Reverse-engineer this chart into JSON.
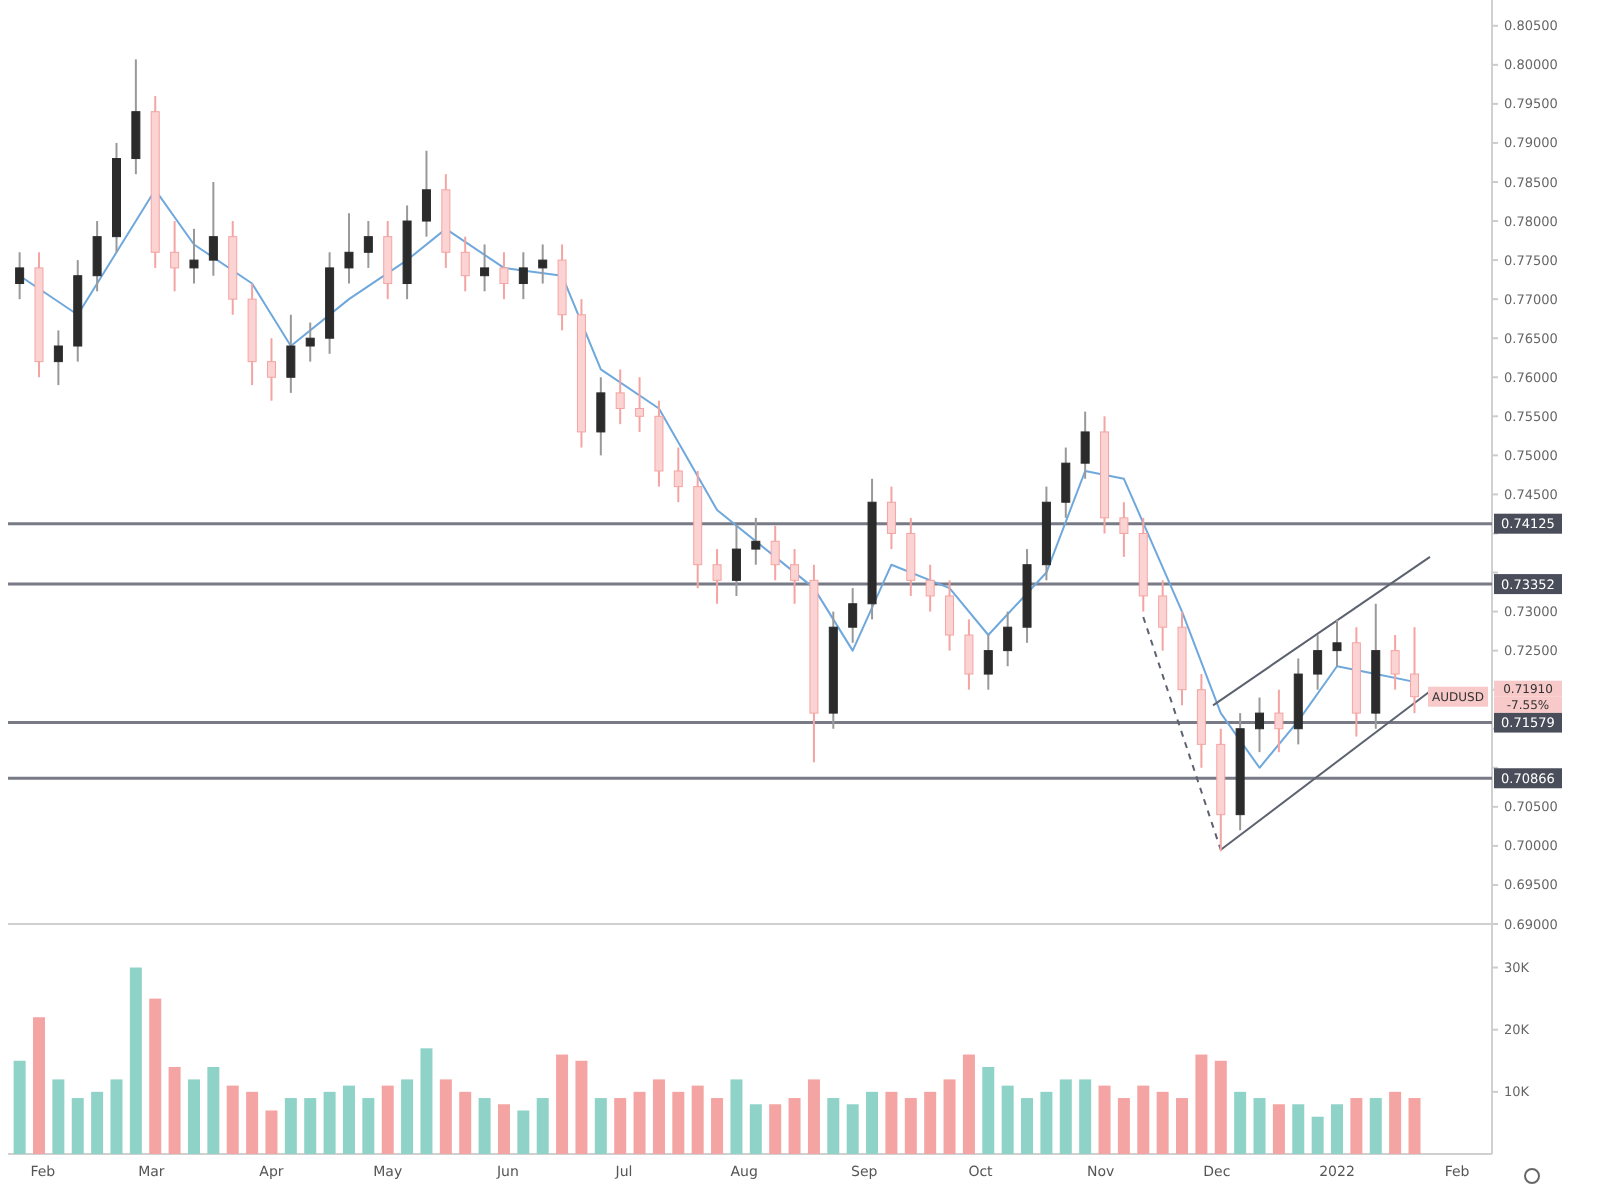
{
  "chart_data": [
    {
      "type": "candlestick",
      "tick_labels": "y",
      "xlim": [
        "2021-01-23",
        "2022-02-10"
      ],
      "ylim": [
        0.69,
        0.8083
      ],
      "yticks": [
        {
          "value": 0.69,
          "label": "0.69000"
        },
        {
          "value": 0.695,
          "label": "0.69500"
        },
        {
          "value": 0.7,
          "label": "0.70000"
        },
        {
          "value": 0.705,
          "label": "0.70500"
        },
        {
          "value": 0.71,
          "label": null
        },
        {
          "value": 0.715,
          "label": null
        },
        {
          "value": 0.72,
          "label": null
        },
        {
          "value": 0.725,
          "label": "0.72500"
        },
        {
          "value": 0.73,
          "label": "0.73000"
        },
        {
          "value": 0.735,
          "label": null
        },
        {
          "value": 0.74,
          "label": null
        },
        {
          "value": 0.745,
          "label": "0.74500"
        },
        {
          "value": 0.75,
          "label": "0.75000"
        },
        {
          "value": 0.755,
          "label": "0.75500"
        },
        {
          "value": 0.76,
          "label": "0.76000"
        },
        {
          "value": 0.765,
          "label": "0.76500"
        },
        {
          "value": 0.77,
          "label": "0.77000"
        },
        {
          "value": 0.775,
          "label": "0.77500"
        },
        {
          "value": 0.78,
          "label": "0.78000"
        },
        {
          "value": 0.785,
          "label": "0.78500"
        },
        {
          "value": 0.79,
          "label": "0.79000"
        },
        {
          "value": 0.795,
          "label": "0.79500"
        },
        {
          "value": 0.8,
          "label": "0.80000"
        },
        {
          "value": 0.805,
          "label": "0.80500"
        }
      ],
      "x": [
        "2021-01-26",
        "2021-01-31",
        "2021-02-05",
        "2021-02-10",
        "2021-02-15",
        "2021-02-20",
        "2021-02-25",
        "2021-03-02",
        "2021-03-07",
        "2021-03-12",
        "2021-03-17",
        "2021-03-22",
        "2021-03-27",
        "2021-04-01",
        "2021-04-06",
        "2021-04-11",
        "2021-04-16",
        "2021-04-21",
        "2021-04-26",
        "2021-05-01",
        "2021-05-06",
        "2021-05-11",
        "2021-05-16",
        "2021-05-21",
        "2021-05-26",
        "2021-05-31",
        "2021-06-05",
        "2021-06-10",
        "2021-06-15",
        "2021-06-20",
        "2021-06-25",
        "2021-06-30",
        "2021-07-05",
        "2021-07-10",
        "2021-07-15",
        "2021-07-20",
        "2021-07-25",
        "2021-07-30",
        "2021-08-04",
        "2021-08-09",
        "2021-08-14",
        "2021-08-19",
        "2021-08-24",
        "2021-08-29",
        "2021-09-03",
        "2021-09-08",
        "2021-09-13",
        "2021-09-18",
        "2021-09-23",
        "2021-09-28",
        "2021-10-03",
        "2021-10-08",
        "2021-10-13",
        "2021-10-18",
        "2021-10-23",
        "2021-10-28",
        "2021-11-02",
        "2021-11-07",
        "2021-11-12",
        "2021-11-17",
        "2021-11-22",
        "2021-11-27",
        "2021-12-02",
        "2021-12-07",
        "2021-12-12",
        "2021-12-17",
        "2021-12-22",
        "2021-12-27",
        "2022-01-01",
        "2022-01-06",
        "2022-01-11",
        "2022-01-16",
        "2022-01-21"
      ],
      "ohlc": [
        [
          0.772,
          0.776,
          0.77,
          0.774
        ],
        [
          0.774,
          0.776,
          0.76,
          0.762
        ],
        [
          0.762,
          0.766,
          0.759,
          0.764
        ],
        [
          0.764,
          0.775,
          0.762,
          0.773
        ],
        [
          0.773,
          0.78,
          0.771,
          0.778
        ],
        [
          0.778,
          0.79,
          0.776,
          0.788
        ],
        [
          0.788,
          0.8007,
          0.786,
          0.794
        ],
        [
          0.794,
          0.796,
          0.774,
          0.776
        ],
        [
          0.776,
          0.78,
          0.771,
          0.774
        ],
        [
          0.774,
          0.779,
          0.772,
          0.775
        ],
        [
          0.775,
          0.785,
          0.773,
          0.778
        ],
        [
          0.778,
          0.78,
          0.768,
          0.77
        ],
        [
          0.77,
          0.772,
          0.759,
          0.762
        ],
        [
          0.762,
          0.765,
          0.757,
          0.76
        ],
        [
          0.76,
          0.768,
          0.758,
          0.764
        ],
        [
          0.764,
          0.767,
          0.762,
          0.765
        ],
        [
          0.765,
          0.776,
          0.763,
          0.774
        ],
        [
          0.774,
          0.781,
          0.772,
          0.776
        ],
        [
          0.776,
          0.78,
          0.774,
          0.778
        ],
        [
          0.778,
          0.78,
          0.77,
          0.772
        ],
        [
          0.772,
          0.782,
          0.77,
          0.78
        ],
        [
          0.78,
          0.789,
          0.778,
          0.784
        ],
        [
          0.784,
          0.786,
          0.774,
          0.776
        ],
        [
          0.776,
          0.778,
          0.771,
          0.773
        ],
        [
          0.773,
          0.777,
          0.771,
          0.774
        ],
        [
          0.774,
          0.776,
          0.77,
          0.772
        ],
        [
          0.772,
          0.776,
          0.77,
          0.774
        ],
        [
          0.774,
          0.777,
          0.772,
          0.775
        ],
        [
          0.775,
          0.777,
          0.766,
          0.768
        ],
        [
          0.768,
          0.77,
          0.751,
          0.753
        ],
        [
          0.753,
          0.76,
          0.75,
          0.758
        ],
        [
          0.758,
          0.761,
          0.754,
          0.756
        ],
        [
          0.756,
          0.76,
          0.753,
          0.755
        ],
        [
          0.755,
          0.757,
          0.746,
          0.748
        ],
        [
          0.748,
          0.751,
          0.744,
          0.746
        ],
        [
          0.746,
          0.748,
          0.733,
          0.736
        ],
        [
          0.736,
          0.738,
          0.731,
          0.734
        ],
        [
          0.734,
          0.741,
          0.732,
          0.738
        ],
        [
          0.738,
          0.742,
          0.736,
          0.739
        ],
        [
          0.739,
          0.741,
          0.734,
          0.736
        ],
        [
          0.736,
          0.738,
          0.731,
          0.734
        ],
        [
          0.734,
          0.736,
          0.7107,
          0.717
        ],
        [
          0.717,
          0.73,
          0.715,
          0.728
        ],
        [
          0.728,
          0.733,
          0.726,
          0.731
        ],
        [
          0.731,
          0.747,
          0.729,
          0.744
        ],
        [
          0.744,
          0.746,
          0.738,
          0.74
        ],
        [
          0.74,
          0.742,
          0.732,
          0.734
        ],
        [
          0.734,
          0.736,
          0.73,
          0.732
        ],
        [
          0.732,
          0.734,
          0.725,
          0.727
        ],
        [
          0.727,
          0.729,
          0.72,
          0.722
        ],
        [
          0.722,
          0.727,
          0.72,
          0.725
        ],
        [
          0.725,
          0.73,
          0.723,
          0.728
        ],
        [
          0.728,
          0.738,
          0.726,
          0.736
        ],
        [
          0.736,
          0.746,
          0.734,
          0.744
        ],
        [
          0.744,
          0.751,
          0.742,
          0.749
        ],
        [
          0.749,
          0.7556,
          0.747,
          0.753
        ],
        [
          0.753,
          0.755,
          0.74,
          0.742
        ],
        [
          0.742,
          0.744,
          0.737,
          0.74
        ],
        [
          0.74,
          0.742,
          0.73,
          0.732
        ],
        [
          0.732,
          0.734,
          0.725,
          0.728
        ],
        [
          0.728,
          0.73,
          0.718,
          0.72
        ],
        [
          0.72,
          0.722,
          0.71,
          0.713
        ],
        [
          0.713,
          0.715,
          0.6993,
          0.704
        ],
        [
          0.704,
          0.717,
          0.702,
          0.715
        ],
        [
          0.715,
          0.719,
          0.712,
          0.717
        ],
        [
          0.717,
          0.72,
          0.712,
          0.715
        ],
        [
          0.715,
          0.724,
          0.713,
          0.722
        ],
        [
          0.722,
          0.727,
          0.72,
          0.725
        ],
        [
          0.725,
          0.729,
          0.723,
          0.726
        ],
        [
          0.726,
          0.728,
          0.714,
          0.717
        ],
        [
          0.717,
          0.731,
          0.715,
          0.725
        ],
        [
          0.725,
          0.727,
          0.72,
          0.722
        ],
        [
          0.722,
          0.728,
          0.717,
          0.7191
        ]
      ],
      "series": [
        {
          "type": "line",
          "color": "#6fa8dc",
          "x": [
            "2021-01-26",
            "2021-02-10",
            "2021-02-20",
            "2021-03-02",
            "2021-03-12",
            "2021-03-27",
            "2021-04-06",
            "2021-04-21",
            "2021-05-06",
            "2021-05-16",
            "2021-05-31",
            "2021-06-15",
            "2021-06-25",
            "2021-07-10",
            "2021-07-25",
            "2021-08-09",
            "2021-08-19",
            "2021-08-29",
            "2021-09-08",
            "2021-09-23",
            "2021-10-03",
            "2021-10-18",
            "2021-10-28",
            "2021-11-07",
            "2021-11-22",
            "2021-12-02",
            "2021-12-12",
            "2021-12-22",
            "2022-01-01",
            "2022-01-11",
            "2022-01-21"
          ],
          "values": [
            0.773,
            0.768,
            0.776,
            0.784,
            0.777,
            0.772,
            0.764,
            0.77,
            0.775,
            0.779,
            0.774,
            0.773,
            0.761,
            0.756,
            0.743,
            0.737,
            0.733,
            0.725,
            0.736,
            0.733,
            0.727,
            0.735,
            0.748,
            0.747,
            0.73,
            0.717,
            0.71,
            0.716,
            0.723,
            0.722,
            0.721
          ]
        },
        {
          "type": "line",
          "color": "#5d6270",
          "line_style": "solid",
          "x": [
            "2021-11-30",
            "2022-01-25"
          ],
          "values": [
            0.718,
            0.737
          ]
        },
        {
          "type": "line",
          "color": "#5d6270",
          "line_style": "solid",
          "x": [
            "2021-12-02",
            "2022-01-25"
          ],
          "values": [
            0.6995,
            0.7198
          ]
        },
        {
          "type": "line",
          "color": "#5d6270",
          "line_style": "dashed",
          "x": [
            "2021-11-12",
            "2021-12-02"
          ],
          "values": [
            0.7293,
            0.6995
          ]
        }
      ],
      "ref_lines": [
        {
          "axis": "y",
          "value": 0.74125,
          "label": "0.74125",
          "color": "#787b86"
        },
        {
          "axis": "y",
          "value": 0.73352,
          "label": "0.73352",
          "color": "#787b86"
        },
        {
          "axis": "y",
          "value": 0.71579,
          "label": "0.71579",
          "color": "#787b86"
        },
        {
          "axis": "y",
          "value": 0.70866,
          "label": "0.70866",
          "color": "#787b86"
        }
      ],
      "annotations": [
        "AUDUSD",
        "0.71910",
        "-7.55%"
      ]
    },
    {
      "type": "bar",
      "xlim": [
        "2021-01-23",
        "2022-02-10"
      ],
      "xticks": [
        {
          "value": "2021-02-01",
          "label": "Feb"
        },
        {
          "value": "2021-03-01",
          "label": "Mar"
        },
        {
          "value": "2021-04-01",
          "label": "Apr"
        },
        {
          "value": "2021-05-01",
          "label": "May"
        },
        {
          "value": "2021-06-01",
          "label": "Jun"
        },
        {
          "value": "2021-07-01",
          "label": "Jul"
        },
        {
          "value": "2021-08-01",
          "label": "Aug"
        },
        {
          "value": "2021-09-01",
          "label": "Sep"
        },
        {
          "value": "2021-10-01",
          "label": "Oct"
        },
        {
          "value": "2021-11-01",
          "label": "Nov"
        },
        {
          "value": "2021-12-01",
          "label": "Dec"
        },
        {
          "value": "2022-01-01",
          "label": "2022"
        },
        {
          "value": "2022-02-01",
          "label": "Feb"
        }
      ],
      "ylim": [
        0,
        37000
      ],
      "yticks": [
        {
          "value": 10000,
          "label": "10K"
        },
        {
          "value": 20000,
          "label": "20K"
        },
        {
          "value": 30000,
          "label": "30K"
        }
      ],
      "x": [
        "2021-01-26",
        "2021-01-31",
        "2021-02-05",
        "2021-02-10",
        "2021-02-15",
        "2021-02-20",
        "2021-02-25",
        "2021-03-02",
        "2021-03-07",
        "2021-03-12",
        "2021-03-17",
        "2021-03-22",
        "2021-03-27",
        "2021-04-01",
        "2021-04-06",
        "2021-04-11",
        "2021-04-16",
        "2021-04-21",
        "2021-04-26",
        "2021-05-01",
        "2021-05-06",
        "2021-05-11",
        "2021-05-16",
        "2021-05-21",
        "2021-05-26",
        "2021-05-31",
        "2021-06-05",
        "2021-06-10",
        "2021-06-15",
        "2021-06-20",
        "2021-06-25",
        "2021-06-30",
        "2021-07-05",
        "2021-07-10",
        "2021-07-15",
        "2021-07-20",
        "2021-07-25",
        "2021-07-30",
        "2021-08-04",
        "2021-08-09",
        "2021-08-14",
        "2021-08-19",
        "2021-08-24",
        "2021-08-29",
        "2021-09-03",
        "2021-09-08",
        "2021-09-13",
        "2021-09-18",
        "2021-09-23",
        "2021-09-28",
        "2021-10-03",
        "2021-10-08",
        "2021-10-13",
        "2021-10-18",
        "2021-10-23",
        "2021-10-28",
        "2021-11-02",
        "2021-11-07",
        "2021-11-12",
        "2021-11-17",
        "2021-11-22",
        "2021-11-27",
        "2021-12-02",
        "2021-12-07",
        "2021-12-12",
        "2021-12-17",
        "2021-12-22",
        "2021-12-27",
        "2022-01-01",
        "2022-01-06",
        "2022-01-11",
        "2022-01-16",
        "2022-01-21"
      ],
      "values": [
        15000,
        22000,
        12000,
        9000,
        10000,
        12000,
        30000,
        25000,
        14000,
        12000,
        14000,
        11000,
        10000,
        7000,
        9000,
        9000,
        10000,
        11000,
        9000,
        11000,
        12000,
        17000,
        12000,
        10000,
        9000,
        8000,
        7000,
        9000,
        16000,
        15000,
        9000,
        9000,
        10000,
        12000,
        10000,
        11000,
        9000,
        12000,
        8000,
        8000,
        9000,
        12000,
        9000,
        8000,
        10000,
        10000,
        9000,
        10000,
        12000,
        16000,
        14000,
        11000,
        9000,
        10000,
        12000,
        12000,
        11000,
        9000,
        11000,
        10000,
        9000,
        16000,
        15000,
        10000,
        9000,
        8000,
        8000,
        6000,
        8000,
        9000,
        9000,
        10000,
        9000
      ],
      "colors": [
        "#8fd3c8",
        "#f4a4a2",
        "#8fd3c8",
        "#8fd3c8",
        "#8fd3c8",
        "#8fd3c8",
        "#8fd3c8",
        "#f4a4a2",
        "#f4a4a2",
        "#8fd3c8",
        "#8fd3c8",
        "#f4a4a2",
        "#f4a4a2",
        "#f4a4a2",
        "#8fd3c8",
        "#8fd3c8",
        "#8fd3c8",
        "#8fd3c8",
        "#8fd3c8",
        "#f4a4a2",
        "#8fd3c8",
        "#8fd3c8",
        "#f4a4a2",
        "#f4a4a2",
        "#8fd3c8",
        "#f4a4a2",
        "#8fd3c8",
        "#8fd3c8",
        "#f4a4a2",
        "#f4a4a2",
        "#8fd3c8",
        "#f4a4a2",
        "#f4a4a2",
        "#f4a4a2",
        "#f4a4a2",
        "#f4a4a2",
        "#f4a4a2",
        "#8fd3c8",
        "#8fd3c8",
        "#f4a4a2",
        "#f4a4a2",
        "#f4a4a2",
        "#8fd3c8",
        "#8fd3c8",
        "#8fd3c8",
        "#f4a4a2",
        "#f4a4a2",
        "#f4a4a2",
        "#f4a4a2",
        "#f4a4a2",
        "#8fd3c8",
        "#8fd3c8",
        "#8fd3c8",
        "#8fd3c8",
        "#8fd3c8",
        "#8fd3c8",
        "#f4a4a2",
        "#f4a4a2",
        "#f4a4a2",
        "#f4a4a2",
        "#f4a4a2",
        "#f4a4a2",
        "#f4a4a2",
        "#8fd3c8",
        "#8fd3c8",
        "#f4a4a2",
        "#8fd3c8",
        "#8fd3c8",
        "#8fd3c8",
        "#f4a4a2",
        "#8fd3c8",
        "#f4a4a2",
        "#f4a4a2"
      ]
    }
  ]
}
